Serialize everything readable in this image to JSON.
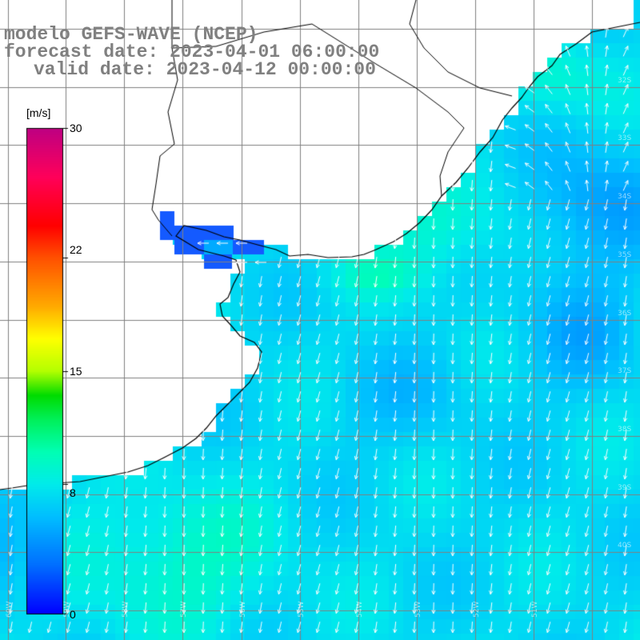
{
  "title": {
    "line1": "modelo GEFS-WAVE (NCEP)",
    "line2": "forecast date: 2023-04-01 06:00:00",
    "line3": "valid date: 2023-04-12 00:00:00"
  },
  "colorbar": {
    "unit": "[m/s]",
    "ticks": [
      "30",
      "22",
      "15",
      "8",
      "0"
    ],
    "tick_values": [
      30,
      22,
      15,
      8,
      0
    ],
    "range": [
      0,
      30
    ],
    "colors": [
      "#0000ff",
      "#00bfff",
      "#00ffd0",
      "#00e000",
      "#c8ff00",
      "#ffff00",
      "#ff9900",
      "#ff0000",
      "#ff0060",
      "#c0007f"
    ]
  },
  "map": {
    "land_color": "#ffffff",
    "coast_color": "#000000",
    "grid_color": "#808080",
    "arrow_color": "#ffffff",
    "lon_labels": [
      "60W",
      "59W",
      "58W",
      "57W",
      "56W",
      "55W",
      "54W",
      "53W",
      "52W",
      "51W"
    ],
    "lat_labels": [
      "32S",
      "33S",
      "34S",
      "35S",
      "36S",
      "37S",
      "38S",
      "39S",
      "40S"
    ]
  }
}
